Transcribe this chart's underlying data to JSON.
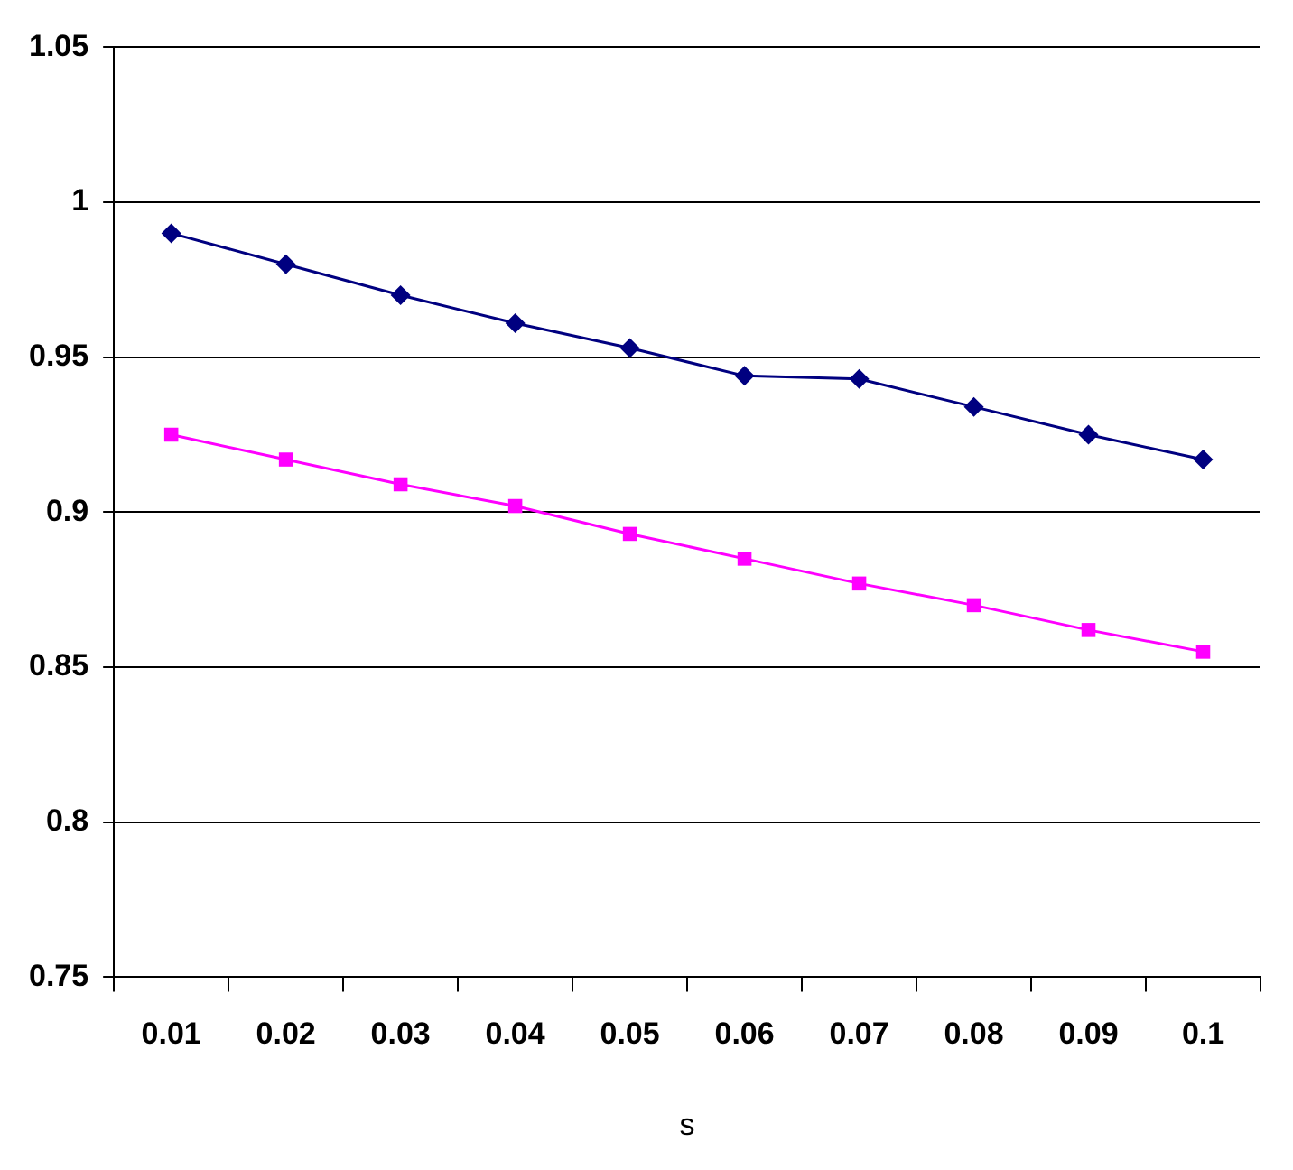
{
  "chart_data": {
    "type": "line",
    "xlabel": "s",
    "categories": [
      "0.01",
      "0.02",
      "0.03",
      "0.04",
      "0.05",
      "0.06",
      "0.07",
      "0.08",
      "0.09",
      "0.1"
    ],
    "series": [
      {
        "color": "#000080",
        "marker": "diamond",
        "values": [
          0.99,
          0.98,
          0.97,
          0.961,
          0.953,
          0.944,
          0.943,
          0.934,
          0.925,
          0.917
        ]
      },
      {
        "color": "#ff00ff",
        "marker": "square",
        "values": [
          0.925,
          0.917,
          0.909,
          0.902,
          0.893,
          0.885,
          0.877,
          0.87,
          0.862,
          0.855
        ]
      }
    ],
    "ylim": [
      0.75,
      1.05
    ],
    "yticks": [
      0.75,
      0.8,
      0.85,
      0.9,
      0.95,
      1,
      1.05
    ],
    "grid": "y",
    "legend": false
  }
}
